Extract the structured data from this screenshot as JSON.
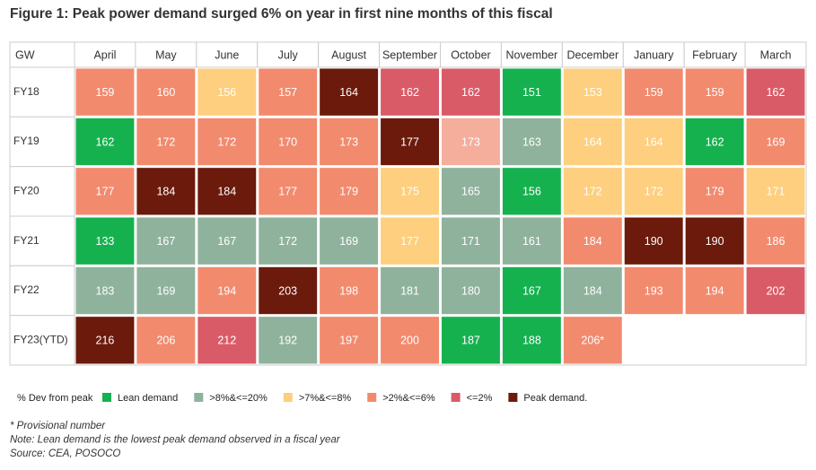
{
  "chart_data": {
    "type": "heatmap",
    "title": "Figure 1: Peak power demand surged 6% on year in first nine months of this fiscal",
    "corner_label": "GW",
    "categories": [
      "April",
      "May",
      "June",
      "July",
      "August",
      "September",
      "October",
      "November",
      "December",
      "January",
      "February",
      "March"
    ],
    "series": [
      {
        "name": "FY18",
        "values": [
          159,
          160,
          156,
          157,
          164,
          162,
          162,
          151,
          153,
          159,
          159,
          162
        ],
        "colors": [
          "#f28a6e",
          "#f28a6e",
          "#fdcf7e",
          "#f28a6e",
          "#6b1a0c",
          "#d95b67",
          "#d95b67",
          "#16b14f",
          "#fdcf7e",
          "#f28a6e",
          "#f28a6e",
          "#d95b67"
        ]
      },
      {
        "name": "FY19",
        "values": [
          162,
          172,
          172,
          170,
          173,
          177,
          173,
          163,
          164,
          164,
          162,
          169
        ],
        "colors": [
          "#16b14f",
          "#f28a6e",
          "#f28a6e",
          "#f28a6e",
          "#f28a6e",
          "#6b1a0c",
          "#f5ad9c",
          "#8fb29c",
          "#fdcf7e",
          "#fdcf7e",
          "#16b14f",
          "#f28a6e"
        ]
      },
      {
        "name": "FY20",
        "values": [
          177,
          184,
          184,
          177,
          179,
          175,
          165,
          156,
          172,
          172,
          179,
          171
        ],
        "colors": [
          "#f28a6e",
          "#6b1a0c",
          "#6b1a0c",
          "#f28a6e",
          "#f28a6e",
          "#fdcf7e",
          "#8fb29c",
          "#16b14f",
          "#fdcf7e",
          "#fdcf7e",
          "#f28a6e",
          "#fdcf7e"
        ]
      },
      {
        "name": "FY21",
        "values": [
          133,
          167,
          167,
          172,
          169,
          177,
          171,
          161,
          184,
          190,
          190,
          186
        ],
        "colors": [
          "#16b14f",
          "#8fb29c",
          "#8fb29c",
          "#8fb29c",
          "#8fb29c",
          "#fdcf7e",
          "#8fb29c",
          "#8fb29c",
          "#f28a6e",
          "#6b1a0c",
          "#6b1a0c",
          "#f28a6e"
        ]
      },
      {
        "name": "FY22",
        "values": [
          183,
          169,
          194,
          203,
          198,
          181,
          180,
          167,
          184,
          193,
          194,
          202
        ],
        "colors": [
          "#8fb29c",
          "#8fb29c",
          "#f28a6e",
          "#6b1a0c",
          "#f28a6e",
          "#8fb29c",
          "#8fb29c",
          "#16b14f",
          "#8fb29c",
          "#f28a6e",
          "#f28a6e",
          "#d95b67"
        ]
      },
      {
        "name": "FY23(YTD)",
        "values": [
          216,
          206,
          212,
          192,
          197,
          200,
          187,
          188,
          206,
          null,
          null,
          null
        ],
        "value_labels": [
          "216",
          "206",
          "212",
          "192",
          "197",
          "200",
          "187",
          "188",
          "206*",
          null,
          null,
          null
        ],
        "colors": [
          "#6b1a0c",
          "#f28a6e",
          "#d95b67",
          "#8fb29c",
          "#f28a6e",
          "#f28a6e",
          "#16b14f",
          "#16b14f",
          "#f28a6e",
          null,
          null,
          null
        ]
      }
    ],
    "legend": {
      "title": "% Dev from peak",
      "items": [
        {
          "name": "Lean demand",
          "color": "#16b14f"
        },
        {
          "name": ">8%&<=20%",
          "color": "#8fb29c"
        },
        {
          "name": ">7%&<=8%",
          "color": "#fdcf7e"
        },
        {
          "name": ">2%&<=6%",
          "color": "#f28a6e"
        },
        {
          "name": "<=2%",
          "color": "#d95b67"
        },
        {
          "name": "Peak demand.",
          "color": "#6b1a0c"
        }
      ]
    },
    "notes": [
      "* Provisional number",
      "Note: Lean demand is the lowest peak demand observed in a fiscal year",
      "Source: CEA, POSOCO"
    ]
  }
}
